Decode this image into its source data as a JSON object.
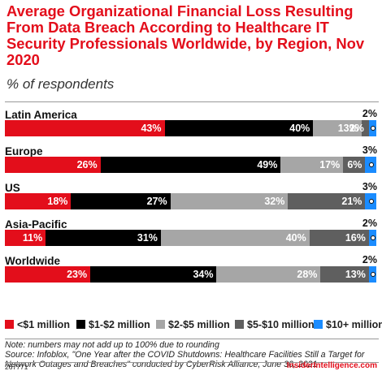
{
  "title": "Average Organizational Financial Loss Resulting From Data Breach According to Healthcare IT Security Professionals Worldwide, by Region, Nov 2020",
  "subtitle": "% of respondents",
  "colors": {
    "title": "#e30e1b",
    "lt_1m": "#e30e1b",
    "1_2m": "#000000",
    "2_5m": "#a6a6a6",
    "5_10m": "#5f5f5f",
    "10m_plus": "#1a8cff"
  },
  "legend": [
    {
      "label": "<$1 million",
      "color": "#e30e1b"
    },
    {
      "label": "$1-$2 million",
      "color": "#000000"
    },
    {
      "label": "$2-$5 million",
      "color": "#a6a6a6"
    },
    {
      "label": "$5-$10 million",
      "color": "#5f5f5f"
    },
    {
      "label": "$10+ million",
      "color": "#1a8cff"
    }
  ],
  "chart_data": {
    "type": "bar",
    "orientation": "horizontal",
    "stacked": true,
    "title": "Average Organizational Financial Loss Resulting From Data Breach According to Healthcare IT Security Professionals Worldwide, by Region, Nov 2020",
    "subtitle": "% of respondents",
    "categories": [
      "Latin America",
      "Europe",
      "US",
      "Asia-Pacific",
      "Worldwide"
    ],
    "series": [
      {
        "name": "<$1 million",
        "values": [
          43,
          26,
          18,
          11,
          23
        ],
        "labels": [
          "43%",
          "26%",
          "18%",
          "11%",
          "23%"
        ]
      },
      {
        "name": "$1-$2 million",
        "values": [
          40,
          49,
          27,
          31,
          34
        ],
        "labels": [
          "40%",
          "49%",
          "27%",
          "31%",
          "34%"
        ]
      },
      {
        "name": "$2-$5 million",
        "values": [
          13,
          17,
          32,
          40,
          28
        ],
        "labels": [
          "13%",
          "17%",
          "32%",
          "40%",
          "28%"
        ]
      },
      {
        "name": "$5-$10 million",
        "values": [
          2,
          6,
          21,
          16,
          13
        ],
        "labels": [
          "2%",
          "6%",
          "21%",
          "16%",
          "13%"
        ]
      },
      {
        "name": "$10+ million",
        "values": [
          2,
          3,
          3,
          2,
          2
        ],
        "labels": [
          "2%",
          "3%",
          "3%",
          "2%",
          "2%"
        ]
      }
    ],
    "legend_position": "bottom",
    "grid": false
  },
  "note": "Note: numbers may not add up to 100% due to rounding",
  "source": "Source: Infoblox, \"One Year after the COVID Shutdowns: Healthcare Facilities Still a Target for Network Outages and Breaches\" conducted by CyberRisk Alliance, June 30, 2021",
  "chart_id": "267771",
  "brand": "InsiderIntelligence.com"
}
